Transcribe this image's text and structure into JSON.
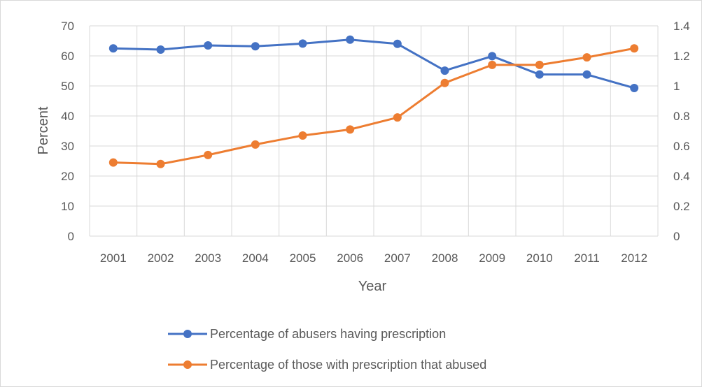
{
  "chart_data": {
    "type": "line",
    "x": [
      "2001",
      "2002",
      "2003",
      "2004",
      "2005",
      "2006",
      "2007",
      "2008",
      "2009",
      "2010",
      "2011",
      "2012"
    ],
    "xlabel": "Year",
    "ylabel": "Percent",
    "y_left": {
      "ylim": [
        0,
        70
      ],
      "ticks": [
        "0",
        "10",
        "20",
        "30",
        "40",
        "50",
        "60",
        "70"
      ]
    },
    "y_right": {
      "ylim": [
        0,
        1.4
      ],
      "ticks": [
        "0",
        "0.2",
        "0.4",
        "0.6",
        "0.8",
        "1",
        "1.2",
        "1.4"
      ]
    },
    "grid": "both",
    "legend_position": "bottom",
    "series": [
      {
        "name": "Percentage of abusers having prescription",
        "axis": "left",
        "color": "#4472C4",
        "values": [
          62.5,
          62.1,
          63.5,
          63.2,
          64.1,
          65.4,
          64.0,
          55.1,
          59.9,
          53.8,
          53.8,
          49.3
        ]
      },
      {
        "name": "Percentage of those with prescription that abused",
        "axis": "right",
        "color": "#ED7D31",
        "values": [
          0.49,
          0.48,
          0.54,
          0.61,
          0.67,
          0.71,
          0.79,
          1.02,
          1.14,
          1.14,
          1.19,
          1.25
        ]
      }
    ]
  }
}
